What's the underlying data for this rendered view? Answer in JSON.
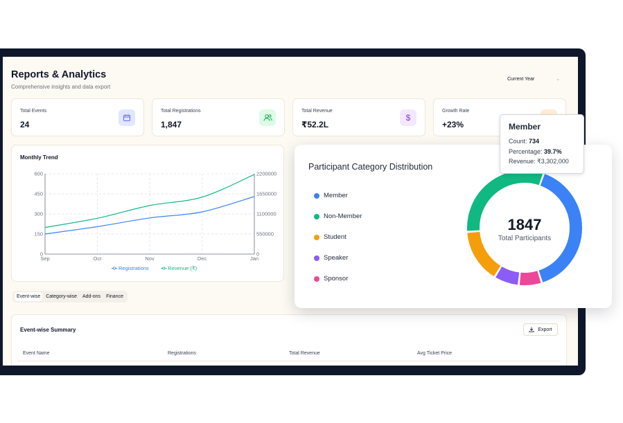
{
  "header": {
    "title": "Reports & Analytics",
    "subtitle": "Comprehensive insights and data export",
    "year_filter": "Current Year"
  },
  "stats": [
    {
      "label": "Total Events",
      "value": "24",
      "icon": "calendar-icon",
      "color": "#6366f1",
      "bg": "#e0e7ff"
    },
    {
      "label": "Total Registrations",
      "value": "1,847",
      "icon": "users-icon",
      "color": "#16a34a",
      "bg": "#dcfce7"
    },
    {
      "label": "Total Revenue",
      "value": "₹52.2L",
      "icon": "dollar-icon",
      "color": "#9333ea",
      "bg": "#f3e8ff"
    },
    {
      "label": "Growth Rate",
      "value": "+23%",
      "icon": "trend-icon",
      "color": "#f97316",
      "bg": "#ffedd5"
    }
  ],
  "trend": {
    "title": "Monthly Trend",
    "legend": [
      {
        "label": "Registrations",
        "color": "#3b82f6"
      },
      {
        "label": "Revenue (₹)",
        "color": "#10b981"
      }
    ]
  },
  "chart_data": [
    {
      "type": "line",
      "title": "Monthly Trend",
      "categories": [
        "Sep",
        "Oct",
        "Nov",
        "Dec",
        "Jan"
      ],
      "y_left_ticks": [
        "0",
        "150",
        "300",
        "450",
        "600"
      ],
      "y_right_ticks": [
        "0",
        "550000",
        "1100000",
        "1650000",
        "2200000"
      ],
      "ylim_left": [
        0,
        600
      ],
      "ylim_right": [
        0,
        2200000
      ],
      "grid": true,
      "legend_position": "bottom",
      "series": [
        {
          "name": "Registrations",
          "axis": "left",
          "color": "#3b82f6",
          "values": [
            150,
            205,
            270,
            315,
            430
          ]
        },
        {
          "name": "Revenue (₹)",
          "axis": "right",
          "color": "#10b981",
          "values": [
            730000,
            980000,
            1330000,
            1560000,
            2180000
          ]
        }
      ]
    },
    {
      "type": "pie",
      "title": "Participant Category Distribution",
      "center_value": "1847",
      "center_label": "Total Participants",
      "slices": [
        {
          "name": "Member",
          "value": 734,
          "color": "#3b82f6"
        },
        {
          "name": "Sponsor",
          "value": 120,
          "color": "#ec4899"
        },
        {
          "name": "Speaker",
          "value": 130,
          "color": "#8b5cf6"
        },
        {
          "name": "Student",
          "value": 280,
          "color": "#f59e0b"
        },
        {
          "name": "Non-Member",
          "value": 583,
          "color": "#10b981"
        }
      ]
    }
  ],
  "distribution": {
    "title": "Participant Category Distribution",
    "legend": [
      {
        "label": "Member",
        "color": "#3b82f6"
      },
      {
        "label": "Non-Member",
        "color": "#10b981"
      },
      {
        "label": "Student",
        "color": "#f59e0b"
      },
      {
        "label": "Speaker",
        "color": "#8b5cf6"
      },
      {
        "label": "Sponsor",
        "color": "#ec4899"
      }
    ],
    "center_value": "1847",
    "center_label": "Total Participants"
  },
  "tooltip": {
    "title": "Member",
    "count_label": "Count: ",
    "count_value": "734",
    "percentage_label": "Percentage: ",
    "percentage_value": "39.7%",
    "revenue_label": "Revenue: ",
    "revenue_value": "₹3,302,000"
  },
  "tabs": [
    {
      "label": "Event-wise",
      "active": true
    },
    {
      "label": "Category-wise",
      "active": false
    },
    {
      "label": "Add-ons",
      "active": false
    },
    {
      "label": "Finance",
      "active": false
    }
  ],
  "summary": {
    "title": "Event-wise Summary",
    "export_label": "Export",
    "columns": [
      "Event Name",
      "Registrations",
      "Total Revenue",
      "Avg Ticket Price"
    ]
  }
}
